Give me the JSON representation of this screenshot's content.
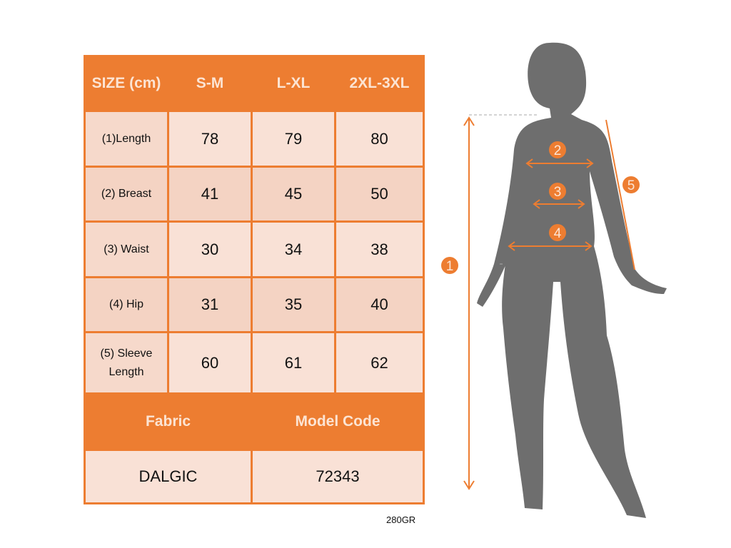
{
  "size_table": {
    "header": [
      "SIZE (cm)",
      "S-M",
      "L-XL",
      "2XL-3XL"
    ],
    "rows": [
      {
        "label": "(1)Length",
        "values": [
          "78",
          "79",
          "80"
        ]
      },
      {
        "label": "(2) Breast",
        "values": [
          "41",
          "45",
          "50"
        ]
      },
      {
        "label": "(3) Waist",
        "values": [
          "30",
          "34",
          "38"
        ]
      },
      {
        "label": "(4) Hip",
        "values": [
          "31",
          "35",
          "40"
        ]
      },
      {
        "label": "(5) Sleeve Length",
        "values": [
          "60",
          "61",
          "62"
        ]
      }
    ]
  },
  "info_table": {
    "header": [
      "Fabric",
      "Model Code"
    ],
    "values": [
      "DALGIC",
      "72343"
    ]
  },
  "note": "280GR",
  "figure": {
    "markers": [
      "1",
      "2",
      "3",
      "4",
      "5"
    ],
    "accent_color": "#ED7D31",
    "silhouette_color": "#6E6E6E"
  }
}
